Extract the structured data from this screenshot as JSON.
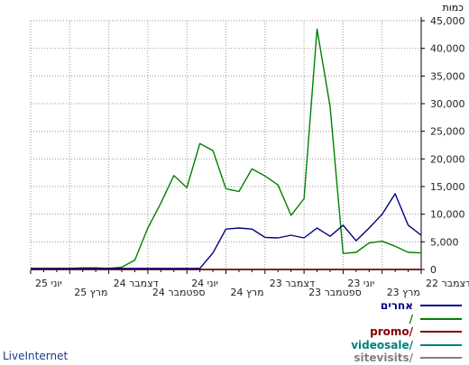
{
  "chart_data": {
    "type": "line",
    "ylabel": "כמות",
    "ylim": [
      0,
      45000
    ],
    "yticks": [
      0,
      5000,
      10000,
      15000,
      20000,
      25000,
      30000,
      35000,
      40000,
      45000
    ],
    "ytick_labels": [
      "0",
      "5,000",
      "10,000",
      "15,000",
      "20,000",
      "25,000",
      "30,000",
      "35,000",
      "40,000",
      "45,000"
    ],
    "x_direction": "right-to-left",
    "x_count": 31,
    "x_major_tick_labels": [
      {
        "index": 0,
        "label": "דצמבר 22"
      },
      {
        "index": 3,
        "label": "מרץ 23"
      },
      {
        "index": 6,
        "label": "יוני 23"
      },
      {
        "index": 9,
        "label": "ספטמבר 23"
      },
      {
        "index": 12,
        "label": "דצמבר 23"
      },
      {
        "index": 15,
        "label": "מרץ 24"
      },
      {
        "index": 18,
        "label": "יוני 24"
      },
      {
        "index": 21,
        "label": "ספטמבר 24"
      },
      {
        "index": 24,
        "label": "דצמבר 24"
      },
      {
        "index": 27,
        "label": "מרץ 25"
      },
      {
        "index": 30,
        "label": "יוני 25"
      }
    ],
    "grid": true,
    "legend_position": "bottom-right",
    "series": [
      {
        "name": "אחרים",
        "color": "#000080",
        "values": [
          6200,
          8000,
          13700,
          10000,
          7500,
          5200,
          8000,
          6000,
          7500,
          5700,
          6200,
          5700,
          5800,
          7300,
          7500,
          7300,
          3000,
          200,
          200,
          200,
          200,
          200,
          200,
          200,
          200,
          200,
          200,
          200,
          200,
          200,
          200
        ]
      },
      {
        "name": "/",
        "color": "#008000",
        "values": [
          3000,
          3100,
          4200,
          5100,
          4800,
          3100,
          2900,
          29500,
          43500,
          12800,
          9800,
          15300,
          16900,
          18200,
          14100,
          14600,
          21500,
          22800,
          14800,
          17000,
          12000,
          7500,
          1700,
          400,
          200,
          300,
          300,
          200,
          200,
          200,
          200
        ]
      },
      {
        "name": "promo/",
        "color": "#800000",
        "values": [
          0,
          0,
          0,
          0,
          0,
          0,
          0,
          0,
          0,
          0,
          0,
          0,
          0,
          0,
          0,
          0,
          0,
          0,
          0,
          0,
          0,
          0,
          0,
          0,
          0,
          0,
          0,
          0,
          0,
          0,
          0
        ]
      },
      {
        "name": "videosale/",
        "color": "#008080",
        "values": [
          0,
          0,
          0,
          0,
          0,
          0,
          0,
          0,
          0,
          0,
          0,
          0,
          0,
          0,
          0,
          0,
          0,
          0,
          0,
          0,
          0,
          0,
          0,
          0,
          0,
          0,
          0,
          0,
          0,
          0,
          0
        ]
      },
      {
        "name": "sitevisits/",
        "color": "#808080",
        "values": [
          0,
          0,
          0,
          0,
          0,
          0,
          0,
          0,
          0,
          0,
          0,
          0,
          0,
          0,
          0,
          0,
          0,
          0,
          0,
          0,
          0,
          0,
          0,
          0,
          0,
          0,
          0,
          0,
          0,
          0,
          0
        ]
      }
    ]
  },
  "footer": {
    "brand": "LiveInternet"
  }
}
